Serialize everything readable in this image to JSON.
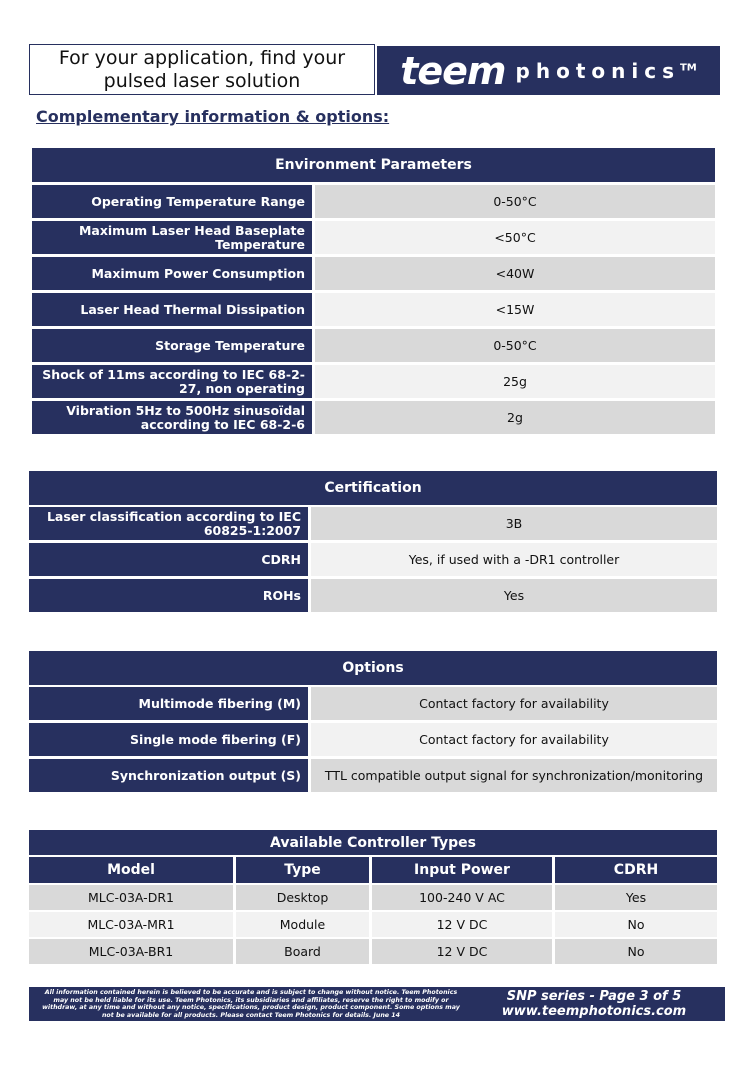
{
  "header": {
    "tagline": "For your application, find your pulsed laser solution",
    "logo_text": "teem photonics™",
    "logo_part1": "teem",
    "logo_part2": "photonics",
    "logo_tm": "TM"
  },
  "section_title": "Complementary information & options:",
  "environment": {
    "title": "Environment Parameters",
    "rows": [
      {
        "label": "Operating Temperature Range",
        "value": "0-50°C"
      },
      {
        "label": "Maximum Laser Head Baseplate Temperature",
        "value": "<50°C"
      },
      {
        "label": "Maximum Power Consumption",
        "value": "<40W"
      },
      {
        "label": "Laser Head Thermal Dissipation",
        "value": "<15W"
      },
      {
        "label": "Storage Temperature",
        "value": "0-50°C"
      },
      {
        "label": "Shock of 11ms according to IEC 68-2-27, non operating",
        "value": "25g"
      },
      {
        "label": "Vibration 5Hz to 500Hz sinusoïdal according to IEC 68-2-6",
        "value": "2g"
      }
    ]
  },
  "certification": {
    "title": "Certification",
    "rows": [
      {
        "label": "Laser classification according to IEC 60825-1:2007",
        "value": "3B"
      },
      {
        "label": "CDRH",
        "value": "Yes, if used with a -DR1 controller"
      },
      {
        "label": "ROHs",
        "value": "Yes"
      }
    ]
  },
  "options": {
    "title": "Options",
    "rows": [
      {
        "label": "Multimode fibering (M)",
        "value": "Contact factory for availability"
      },
      {
        "label": "Single mode fibering (F)",
        "value": "Contact factory for availability"
      },
      {
        "label": "Synchronization output (S)",
        "value": "TTL compatible output signal for synchronization/monitoring"
      }
    ]
  },
  "controllers": {
    "title": "Available Controller Types",
    "columns": [
      "Model",
      "Type",
      "Input Power",
      "CDRH"
    ],
    "rows": [
      [
        "MLC-03A-DR1",
        "Desktop",
        "100-240 V AC",
        "Yes"
      ],
      [
        "MLC-03A-MR1",
        "Module",
        "12 V DC",
        "No"
      ],
      [
        "MLC-03A-BR1",
        "Board",
        "12 V DC",
        "No"
      ]
    ]
  },
  "footer": {
    "disclaimer": "All information contained herein is believed to be accurate and is subject to change without notice. Teem Photonics may not be held liable for its use. Teem Photonics, its subsidiaries and affiliates, reserve the right to modify or withdraw, at any time and without any notice, specifications, product design, product component. Some options may not be available for all products. Please contact Teem Photonics for details. June 14",
    "page": "SNP series - Page 3 of 5",
    "website": "www.teemphotonics.com"
  },
  "colors": {
    "navy": "#27305f",
    "row_dark": "#d9d9d9",
    "row_light": "#f2f2f2"
  }
}
